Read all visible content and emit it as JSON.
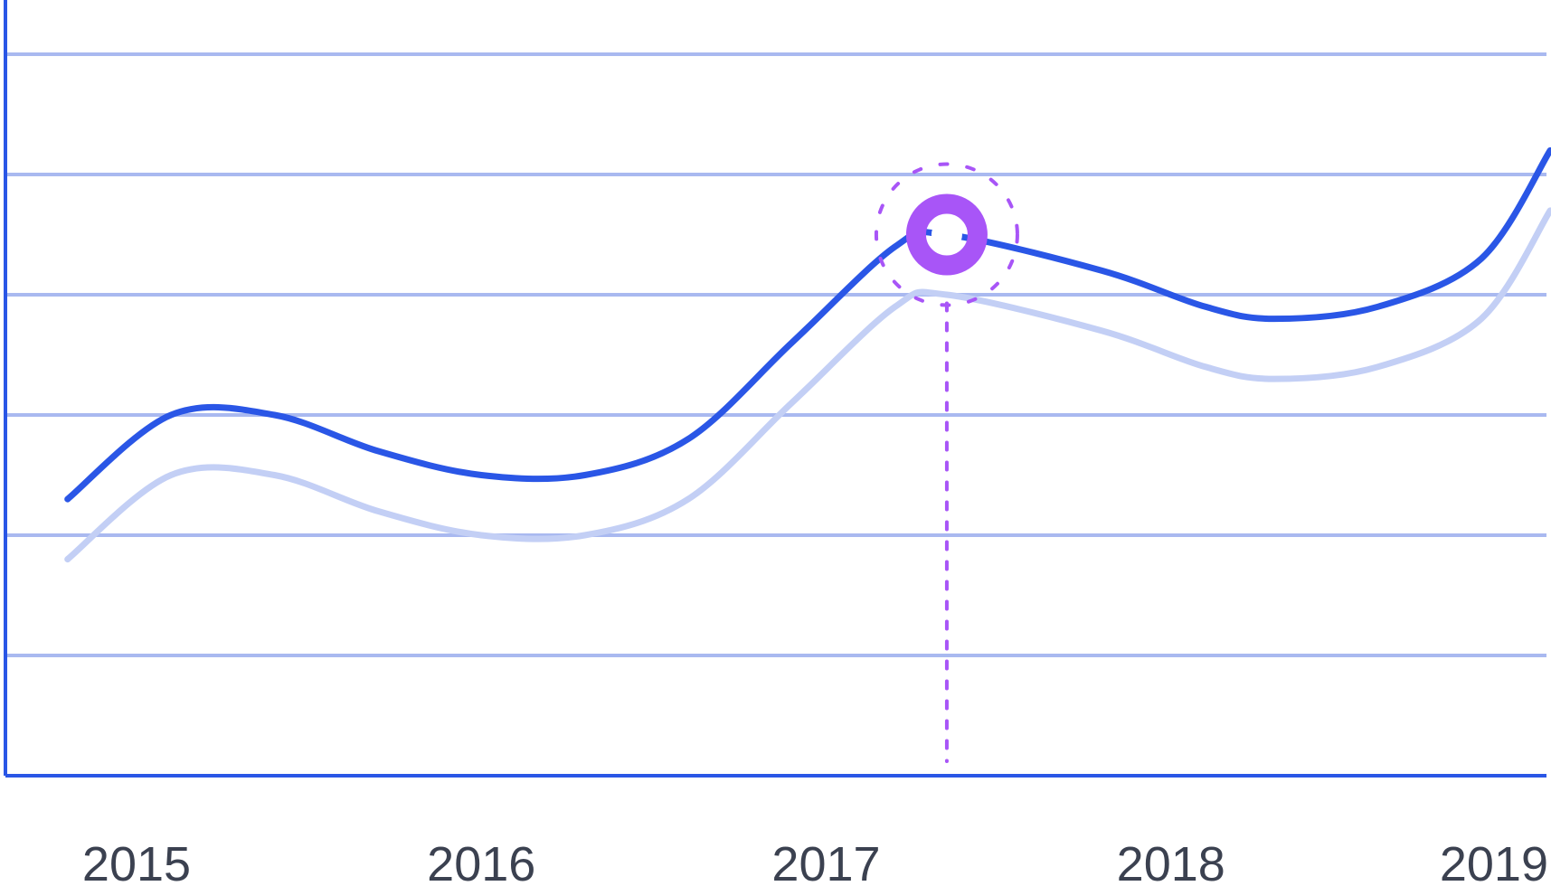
{
  "colors": {
    "axis": "#2a56e6",
    "grid": "#a9b9f0",
    "series_primary": "#2a56e6",
    "series_secondary": "#c3cff5",
    "highlight": "#a855f7",
    "tick_text": "#3b4150"
  },
  "chart_data": {
    "type": "line",
    "title": "",
    "xlabel": "",
    "ylabel": "",
    "x_ticks": [
      "2015",
      "2016",
      "2017",
      "2018",
      "2019"
    ],
    "xlim": [
      2015,
      2019
    ],
    "ylim": [
      0,
      6
    ],
    "grid": "horizontal",
    "y_gridlines": [
      1,
      2,
      3,
      4,
      5,
      6
    ],
    "series": [
      {
        "style": "primary",
        "points": [
          [
            2014.8,
            2.3
          ],
          [
            2015.1,
            3.0
          ],
          [
            2015.4,
            3.0
          ],
          [
            2015.7,
            2.7
          ],
          [
            2016.0,
            2.5
          ],
          [
            2016.3,
            2.5
          ],
          [
            2016.6,
            2.8
          ],
          [
            2016.9,
            3.6
          ],
          [
            2017.2,
            4.4
          ],
          [
            2017.35,
            4.5
          ],
          [
            2017.8,
            4.2
          ],
          [
            2018.1,
            3.9
          ],
          [
            2018.3,
            3.8
          ],
          [
            2018.6,
            3.9
          ],
          [
            2018.9,
            4.3
          ],
          [
            2019.1,
            5.2
          ]
        ]
      },
      {
        "style": "secondary",
        "points": [
          [
            2014.8,
            1.8
          ],
          [
            2015.1,
            2.5
          ],
          [
            2015.4,
            2.5
          ],
          [
            2015.7,
            2.2
          ],
          [
            2016.0,
            2.0
          ],
          [
            2016.3,
            2.0
          ],
          [
            2016.6,
            2.3
          ],
          [
            2016.9,
            3.1
          ],
          [
            2017.2,
            3.9
          ],
          [
            2017.35,
            4.0
          ],
          [
            2017.8,
            3.7
          ],
          [
            2018.1,
            3.4
          ],
          [
            2018.3,
            3.3
          ],
          [
            2018.6,
            3.4
          ],
          [
            2018.9,
            3.8
          ],
          [
            2019.1,
            4.7
          ]
        ]
      }
    ],
    "highlight_point": {
      "x": 2017.35,
      "y": 4.5,
      "series": "primary"
    }
  }
}
